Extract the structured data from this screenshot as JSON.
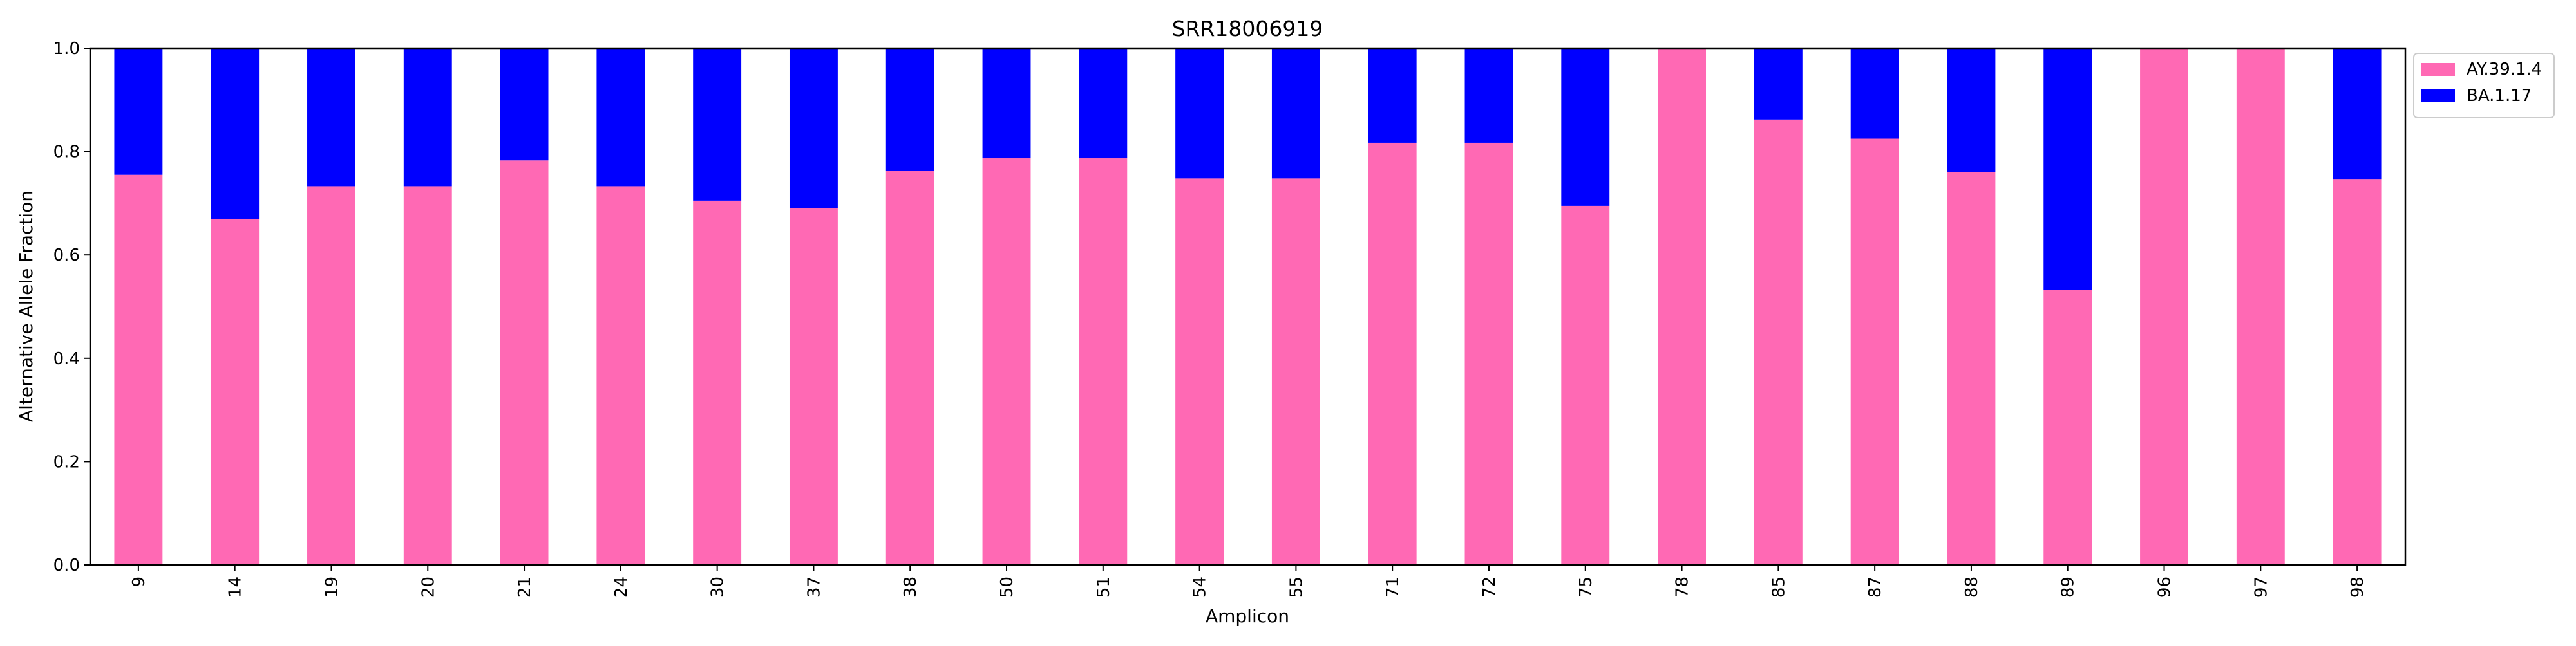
{
  "chart_data": {
    "type": "bar",
    "stacked": true,
    "title": "SRR18006919",
    "xlabel": "Amplicon",
    "ylabel": "Alternative Allele Fraction",
    "ylim": [
      0,
      1.0
    ],
    "yticks": [
      "0.0",
      "0.2",
      "0.4",
      "0.6",
      "0.8",
      "1.0"
    ],
    "categories": [
      "9",
      "14",
      "19",
      "20",
      "21",
      "24",
      "30",
      "37",
      "38",
      "50",
      "51",
      "54",
      "55",
      "71",
      "72",
      "75",
      "78",
      "85",
      "87",
      "88",
      "89",
      "96",
      "97",
      "98"
    ],
    "series": [
      {
        "name": "AY.39.1.4",
        "color": "#ff69b4",
        "values": [
          0.755,
          0.67,
          0.733,
          0.733,
          0.783,
          0.733,
          0.705,
          0.69,
          0.763,
          0.787,
          0.787,
          0.748,
          0.748,
          0.817,
          0.817,
          0.695,
          1.0,
          0.862,
          0.825,
          0.76,
          0.532,
          1.0,
          1.0,
          0.747
        ]
      },
      {
        "name": "BA.1.17",
        "color": "#0000ff",
        "values": [
          0.245,
          0.33,
          0.267,
          0.267,
          0.217,
          0.267,
          0.295,
          0.31,
          0.237,
          0.213,
          0.213,
          0.252,
          0.252,
          0.183,
          0.183,
          0.305,
          0.0,
          0.138,
          0.175,
          0.24,
          0.468,
          0.0,
          0.0,
          0.253
        ]
      }
    ],
    "grid": false,
    "legend_position": "outside-top-right"
  }
}
